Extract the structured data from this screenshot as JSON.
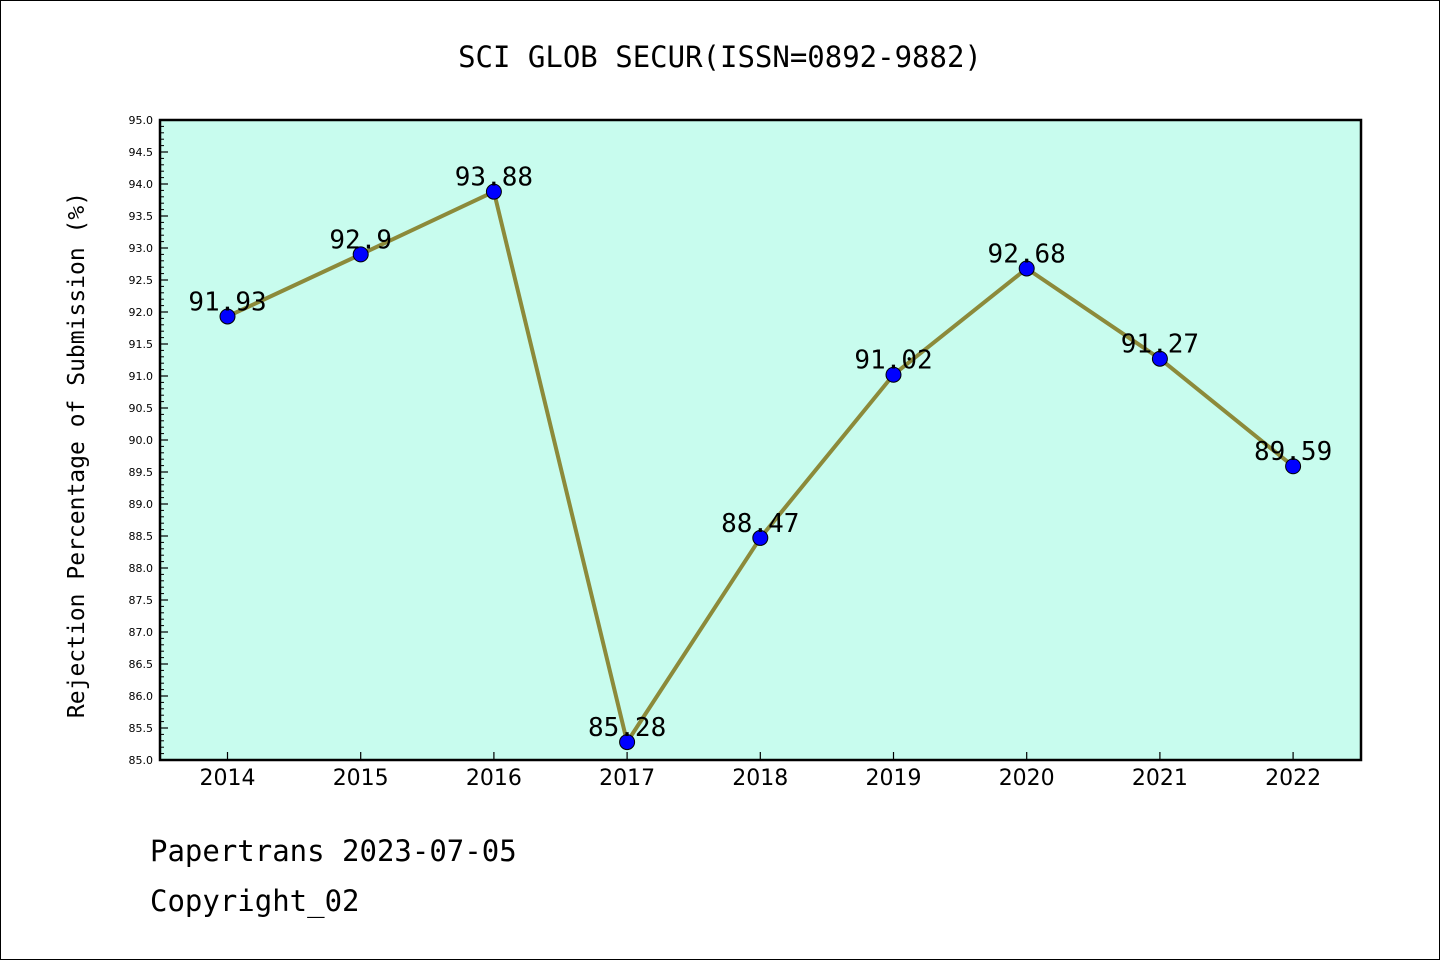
{
  "chart_data": {
    "type": "line",
    "title": "SCI GLOB SECUR(ISSN=0892-9882)",
    "xlabel": "",
    "ylabel": "Rejection Percentage of Submission (%)",
    "categories": [
      "2014",
      "2015",
      "2016",
      "2017",
      "2018",
      "2019",
      "2020",
      "2021",
      "2022"
    ],
    "series": [
      {
        "values": [
          91.93,
          92.9,
          93.88,
          85.28,
          88.47,
          91.02,
          92.68,
          91.27,
          89.59
        ],
        "labels": [
          "91.93",
          "92.9",
          "93.88",
          "85.28",
          "88.47",
          "91.02",
          "92.68",
          "91.27",
          "89.59"
        ]
      }
    ],
    "ylim": [
      85.0,
      95.0
    ],
    "ytick_step": 0.5,
    "yticks": [
      "85.0",
      "85.5",
      "86.0",
      "86.5",
      "87.0",
      "87.5",
      "88.0",
      "88.5",
      "89.0",
      "89.5",
      "90.0",
      "90.5",
      "91.0",
      "91.5",
      "92.0",
      "92.5",
      "93.0",
      "93.5",
      "94.0",
      "94.5",
      "95.0"
    ],
    "grid": false,
    "legend": "none",
    "colors": {
      "plot_background": "#c8fcee",
      "line": "#8c8a3a",
      "marker": "#0000ff",
      "axes": "#000000"
    }
  },
  "footer": {
    "line1": "Papertrans 2023-07-05",
    "line2": "Copyright_02"
  }
}
